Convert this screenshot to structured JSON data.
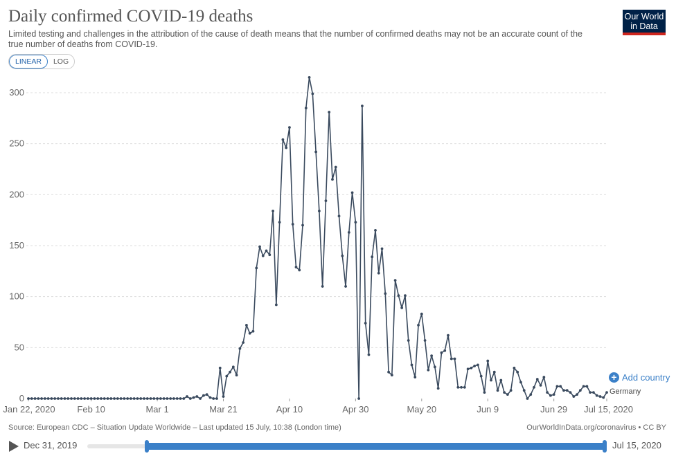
{
  "header": {
    "title": "Daily confirmed COVID-19 deaths",
    "subtitle": "Limited testing and challenges in the attribution of the cause of death means that the number of confirmed deaths may not be an accurate count of the true number of deaths from COVID-19.",
    "logo_line1": "Our World",
    "logo_line2": "in Data"
  },
  "scale_toggle": {
    "linear": "LINEAR",
    "log": "LOG"
  },
  "legend": {
    "add_country": "Add country",
    "series_label": "Germany"
  },
  "footer": {
    "source": "Source: European CDC – Situation Update Worldwide – Last updated 15 July, 10:38 (London time)",
    "url": "OurWorldInData.org/coronavirus • CC BY"
  },
  "timeline": {
    "start_label": "Dec 31, 2019",
    "end_label": "Jul 15, 2020"
  },
  "colors": {
    "line": "#3a4a5e",
    "accent": "#3b80c8",
    "grid": "#dddddd"
  },
  "chart_data": {
    "type": "line",
    "title": "Daily confirmed COVID-19 deaths",
    "ylim": [
      0,
      320
    ],
    "yticks": [
      0,
      50,
      100,
      150,
      200,
      250,
      300
    ],
    "x_start": "Jan 22, 2020",
    "x_tick_labels": [
      {
        "label": "Jan 22, 2020",
        "day": 0
      },
      {
        "label": "Feb 10",
        "day": 19
      },
      {
        "label": "Mar 1",
        "day": 39
      },
      {
        "label": "Mar 21",
        "day": 59
      },
      {
        "label": "Apr 10",
        "day": 79
      },
      {
        "label": "Apr 30",
        "day": 99
      },
      {
        "label": "May 20",
        "day": 119
      },
      {
        "label": "Jun 9",
        "day": 139
      },
      {
        "label": "Jun 29",
        "day": 159
      },
      {
        "label": "Jul 15, 2020",
        "day": 175
      }
    ],
    "series": [
      {
        "name": "Germany",
        "values": [
          0,
          0,
          0,
          0,
          0,
          0,
          0,
          0,
          0,
          0,
          0,
          0,
          0,
          0,
          0,
          0,
          0,
          0,
          0,
          0,
          0,
          0,
          0,
          0,
          0,
          0,
          0,
          0,
          0,
          0,
          0,
          0,
          0,
          0,
          0,
          0,
          0,
          0,
          0,
          0,
          0,
          0,
          0,
          0,
          0,
          0,
          0,
          0,
          2,
          0,
          1,
          2,
          0,
          3,
          4,
          1,
          0,
          0,
          30,
          2,
          22,
          26,
          31,
          23,
          49,
          55,
          72,
          64,
          66,
          128,
          149,
          140,
          145,
          141,
          184,
          92,
          173,
          254,
          246,
          266,
          171,
          129,
          126,
          170,
          285,
          315,
          299,
          242,
          184,
          110,
          194,
          281,
          215,
          227,
          179,
          140,
          110,
          163,
          202,
          173,
          0,
          287,
          74,
          43,
          139,
          165,
          123,
          147,
          103,
          26,
          23,
          116,
          101,
          89,
          101,
          57,
          33,
          21,
          72,
          83,
          57,
          28,
          42,
          31,
          10,
          45,
          47,
          62,
          39,
          39,
          11,
          11,
          11,
          29,
          30,
          32,
          33,
          22,
          6,
          37,
          18,
          26,
          8,
          18,
          6,
          4,
          8,
          30,
          26,
          16,
          8,
          0,
          4,
          11,
          19,
          13,
          21,
          6,
          3,
          4,
          12,
          12,
          8,
          8,
          6,
          2,
          4,
          8,
          12,
          12,
          6,
          6,
          3,
          2,
          1,
          6
        ]
      }
    ]
  }
}
